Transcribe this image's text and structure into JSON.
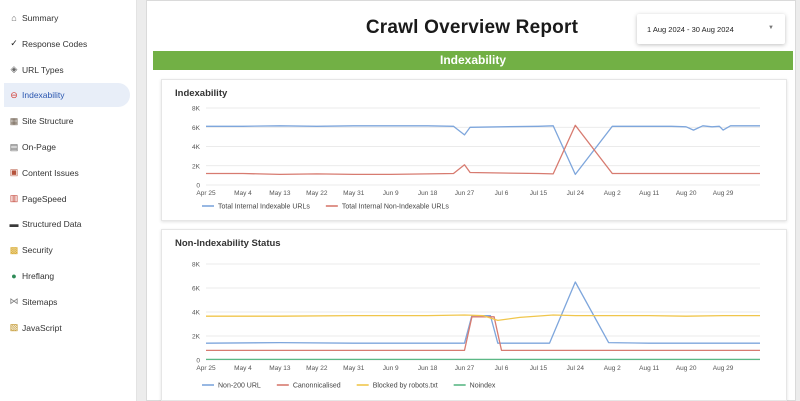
{
  "sidebar": {
    "items": [
      {
        "label": "Summary",
        "icon": "house-icon",
        "active": false
      },
      {
        "label": "Response Codes",
        "icon": "checkmark-icon",
        "active": false
      },
      {
        "label": "URL Types",
        "icon": "link-icon",
        "active": false
      },
      {
        "label": "Indexability",
        "icon": "no-entry-icon",
        "active": true
      },
      {
        "label": "Site Structure",
        "icon": "structure-icon",
        "active": false
      },
      {
        "label": "On-Page",
        "icon": "page-icon",
        "active": false
      },
      {
        "label": "Content Issues",
        "icon": "content-warning-icon",
        "active": false
      },
      {
        "label": "PageSpeed",
        "icon": "speed-icon",
        "active": false
      },
      {
        "label": "Structured Data",
        "icon": "laptop-icon",
        "active": false
      },
      {
        "label": "Security",
        "icon": "lock-icon",
        "active": false
      },
      {
        "label": "Hreflang",
        "icon": "globe-icon",
        "active": false
      },
      {
        "label": "Sitemaps",
        "icon": "sitemap-icon",
        "active": false
      },
      {
        "label": "JavaScript",
        "icon": "script-icon",
        "active": false
      }
    ]
  },
  "header": {
    "title": "Crawl Overview Report",
    "date_range": "1 Aug 2024 - 30 Aug 2024",
    "section_band": "Indexability"
  },
  "colors": {
    "blue": "#7ea6dc",
    "red": "#d77b70",
    "yellow": "#f0c64c",
    "green": "#5cb886",
    "band": "#72b045"
  },
  "chart_data": [
    {
      "type": "line",
      "title": "Indexability",
      "x": [
        "Apr 25",
        "May 4",
        "May 13",
        "May 22",
        "May 31",
        "Jun 9",
        "Jun 18",
        "Jun 27",
        "Jul 6",
        "Jul 15",
        "Jul 24",
        "Aug 2",
        "Aug 11",
        "Aug 20",
        "Aug 29"
      ],
      "xlabel": "",
      "ylabel": "",
      "ylim": [
        0,
        8000
      ],
      "yticks": [
        "0",
        "2K",
        "4K",
        "6K",
        "8K"
      ],
      "grid": true,
      "legend": "bottom-left",
      "series": [
        {
          "name": "Total Internal Indexable URLs",
          "color": "#7ea6dc",
          "points": [
            [
              0,
              6100
            ],
            [
              1,
              6100
            ],
            [
              2,
              6150
            ],
            [
              3,
              6100
            ],
            [
              4,
              6150
            ],
            [
              5,
              6150
            ],
            [
              6,
              6150
            ],
            [
              6.7,
              6100
            ],
            [
              7,
              5200
            ],
            [
              7.15,
              6000
            ],
            [
              8,
              6050
            ],
            [
              9,
              6100
            ],
            [
              9.4,
              6150
            ],
            [
              10,
              1100
            ],
            [
              11,
              6100
            ],
            [
              12,
              6100
            ],
            [
              12.6,
              6100
            ],
            [
              13,
              6050
            ],
            [
              13.2,
              5700
            ],
            [
              13.45,
              6150
            ],
            [
              13.7,
              6050
            ],
            [
              13.9,
              6100
            ],
            [
              14,
              5700
            ],
            [
              14.2,
              6150
            ],
            [
              15,
              6150
            ]
          ]
        },
        {
          "name": "Total Internal Non-Indexable URLs",
          "color": "#d77b70",
          "points": [
            [
              0,
              1200
            ],
            [
              1,
              1200
            ],
            [
              2,
              1100
            ],
            [
              3,
              1150
            ],
            [
              4,
              1100
            ],
            [
              5,
              1100
            ],
            [
              6,
              1150
            ],
            [
              6.7,
              1200
            ],
            [
              7,
              2100
            ],
            [
              7.15,
              1300
            ],
            [
              8,
              1250
            ],
            [
              9,
              1200
            ],
            [
              9.4,
              1150
            ],
            [
              10,
              6200
            ],
            [
              11,
              1200
            ],
            [
              12,
              1200
            ],
            [
              13,
              1200
            ],
            [
              14,
              1200
            ],
            [
              15,
              1200
            ]
          ]
        }
      ]
    },
    {
      "type": "line",
      "title": "Non-Indexability Status",
      "x": [
        "Apr 25",
        "May 4",
        "May 13",
        "May 22",
        "May 31",
        "Jun 9",
        "Jun 18",
        "Jun 27",
        "Jul 6",
        "Jul 15",
        "Jul 24",
        "Aug 2",
        "Aug 11",
        "Aug 20",
        "Aug 29"
      ],
      "xlabel": "",
      "ylabel": "",
      "ylim": [
        0,
        8000
      ],
      "yticks": [
        "0",
        "2K",
        "4K",
        "6K",
        "8K"
      ],
      "grid": true,
      "legend": "bottom-left",
      "series": [
        {
          "name": "Non-200 URL",
          "color": "#7ea6dc",
          "points": [
            [
              0,
              1400
            ],
            [
              2,
              1450
            ],
            [
              4,
              1400
            ],
            [
              6,
              1400
            ],
            [
              7,
              1400
            ],
            [
              7.2,
              3700
            ],
            [
              7.7,
              3700
            ],
            [
              7.9,
              1400
            ],
            [
              9,
              1400
            ],
            [
              9.3,
              1400
            ],
            [
              10,
              6500
            ],
            [
              10.9,
              1450
            ],
            [
              12,
              1400
            ],
            [
              14,
              1400
            ],
            [
              15,
              1400
            ]
          ]
        },
        {
          "name": "Canonnicalised",
          "color": "#d77b70",
          "points": [
            [
              0,
              800
            ],
            [
              3,
              800
            ],
            [
              6,
              800
            ],
            [
              7,
              800
            ],
            [
              7.2,
              3600
            ],
            [
              7.8,
              3600
            ],
            [
              8,
              800
            ],
            [
              10,
              800
            ],
            [
              12,
              800
            ],
            [
              15,
              800
            ]
          ]
        },
        {
          "name": "Blocked by robots.txt",
          "color": "#f0c64c",
          "points": [
            [
              0,
              3650
            ],
            [
              2,
              3650
            ],
            [
              4,
              3700
            ],
            [
              6,
              3700
            ],
            [
              7,
              3750
            ],
            [
              7.5,
              3700
            ],
            [
              7.9,
              3300
            ],
            [
              8.5,
              3550
            ],
            [
              9.4,
              3750
            ],
            [
              10,
              3700
            ],
            [
              11,
              3700
            ],
            [
              12,
              3700
            ],
            [
              13,
              3650
            ],
            [
              14,
              3700
            ],
            [
              15,
              3700
            ]
          ]
        },
        {
          "name": "Noindex",
          "color": "#5cb886",
          "points": [
            [
              0,
              50
            ],
            [
              15,
              50
            ]
          ]
        }
      ]
    }
  ]
}
